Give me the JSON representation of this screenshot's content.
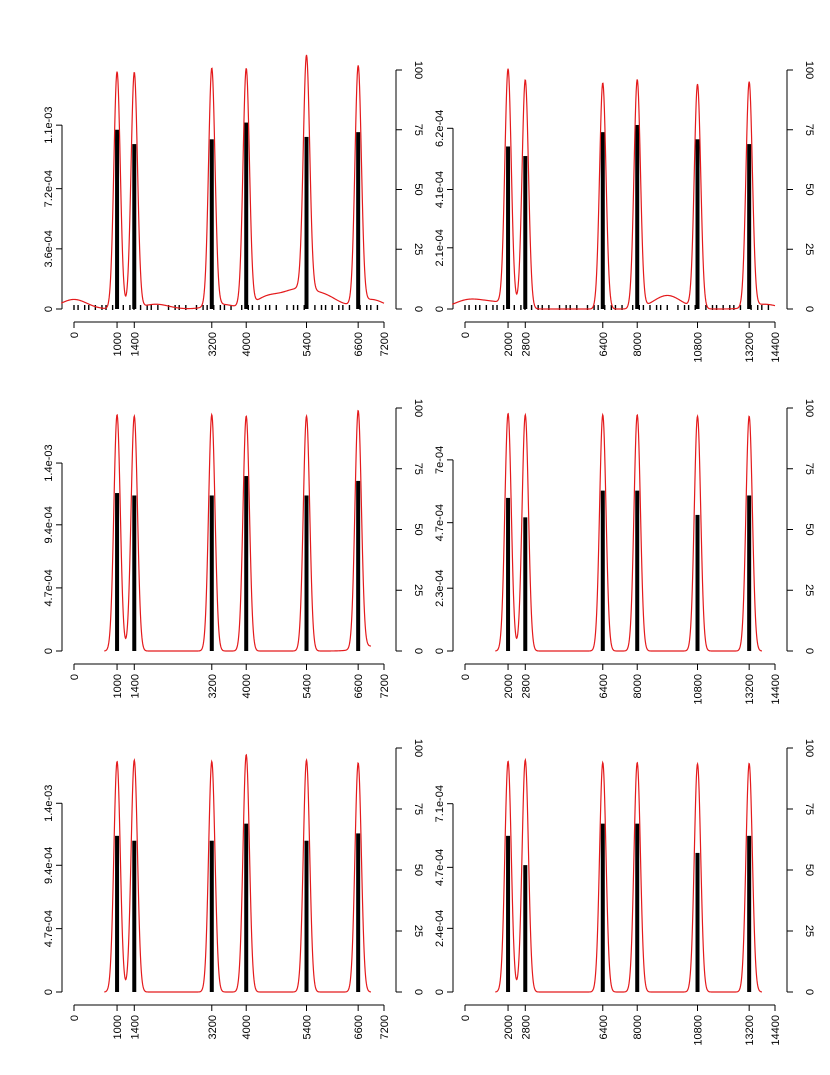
{
  "chart_data": [
    {
      "type": "line",
      "x_ticks": [
        "0",
        "1000",
        "1400",
        "3200",
        "4000",
        "5400",
        "6600",
        "7200"
      ],
      "xlim": [
        0,
        7200
      ],
      "left_ticks": [
        "0",
        "3.6e-04",
        "7.2e-04",
        "1.1e-03"
      ],
      "left_tick_values": [
        0,
        0.00036,
        0.00072,
        0.0011
      ],
      "left_lim": [
        0,
        0.00143
      ],
      "right_ticks": [
        "0",
        "25",
        "50",
        "75",
        "100"
      ],
      "right_lim": [
        0,
        100
      ],
      "peaks": [
        1000,
        1400,
        3200,
        4000,
        5400,
        6600
      ],
      "density_peak_heights": [
        0.00142,
        0.00141,
        0.00142,
        0.00142,
        0.0014,
        0.00142
      ],
      "bar_heights": [
        75,
        69,
        71,
        78,
        72,
        74
      ],
      "small_bumps": [
        [
          0,
          4
        ],
        [
          1900,
          2
        ],
        [
          3400,
          2
        ],
        [
          4500,
          5
        ],
        [
          5100,
          6
        ],
        [
          5500,
          4
        ],
        [
          5900,
          4
        ],
        [
          6900,
          4
        ]
      ],
      "rug": true
    },
    {
      "type": "line",
      "x_ticks": [
        "0",
        "2000",
        "2800",
        "6400",
        "8000",
        "10800",
        "13200",
        "14400"
      ],
      "xlim": [
        0,
        14400
      ],
      "left_ticks": [
        "0",
        "2.1e-04",
        "4.1e-04",
        "6.2e-04"
      ],
      "left_tick_values": [
        0,
        0.00021,
        0.00041,
        0.00062
      ],
      "left_lim": [
        0,
        0.00082
      ],
      "right_ticks": [
        "0",
        "25",
        "50",
        "75",
        "100"
      ],
      "right_lim": [
        0,
        100
      ],
      "peaks": [
        2000,
        2800,
        6400,
        8000,
        10800,
        13200
      ],
      "density_peak_heights": [
        0.000808,
        0.000784,
        0.000776,
        0.000784,
        0.000768,
        0.000772
      ],
      "bar_heights": [
        68,
        64,
        74,
        77,
        71,
        69
      ],
      "small_bumps": [
        [
          0,
          3
        ],
        [
          800,
          2
        ],
        [
          1700,
          2
        ],
        [
          9200,
          3
        ],
        [
          9600,
          3
        ],
        [
          13900,
          2
        ]
      ],
      "rug": true
    },
    {
      "type": "line",
      "x_ticks": [
        "0",
        "1000",
        "1400",
        "3200",
        "4000",
        "5400",
        "6600",
        "7200"
      ],
      "xlim": [
        0,
        7200
      ],
      "left_ticks": [
        "0",
        "4.7e-04",
        "9.4e-04",
        "1.4e-03"
      ],
      "left_tick_values": [
        0,
        0.00047,
        0.00094,
        0.0014
      ],
      "left_lim": [
        0,
        0.00181
      ],
      "right_ticks": [
        "0",
        "25",
        "50",
        "75",
        "100"
      ],
      "right_lim": [
        0,
        100
      ],
      "peaks": [
        1000,
        1400,
        3200,
        4000,
        5400,
        6600
      ],
      "density_peak_heights": [
        0.00176,
        0.00175,
        0.00176,
        0.00175,
        0.00175,
        0.00177
      ],
      "bar_heights": [
        65,
        64,
        64,
        72,
        64,
        70
      ],
      "small_bumps": [
        [
          6900,
          2
        ]
      ],
      "rug": false
    },
    {
      "type": "line",
      "x_ticks": [
        "0",
        "2000",
        "2800",
        "6400",
        "8000",
        "10800",
        "13200",
        "14400"
      ],
      "xlim": [
        0,
        14400
      ],
      "left_ticks": [
        "0",
        "2.3e-04",
        "4.7e-04",
        "7e-04"
      ],
      "left_tick_values": [
        0,
        0.00023,
        0.00047,
        0.0007
      ],
      "left_lim": [
        0,
        0.00089
      ],
      "right_ticks": [
        "0",
        "25",
        "50",
        "75",
        "100"
      ],
      "right_lim": [
        0,
        100
      ],
      "peaks": [
        2000,
        2800,
        6400,
        8000,
        10800,
        13200
      ],
      "density_peak_heights": [
        0.00087,
        0.000865,
        0.000865,
        0.000865,
        0.00086,
        0.00086
      ],
      "bar_heights": [
        63,
        55,
        66,
        66,
        56,
        64
      ],
      "small_bumps": [],
      "rug": false
    },
    {
      "type": "line",
      "x_ticks": [
        "0",
        "1000",
        "1400",
        "3200",
        "4000",
        "5400",
        "6600",
        "7200"
      ],
      "xlim": [
        0,
        7200
      ],
      "left_ticks": [
        "0",
        "4.7e-04",
        "9.4e-04",
        "1.4e-03"
      ],
      "left_tick_values": [
        0,
        0.00047,
        0.00094,
        0.0014
      ],
      "left_lim": [
        0,
        0.00181
      ],
      "right_ticks": [
        "0",
        "25",
        "50",
        "75",
        "100"
      ],
      "right_lim": [
        0,
        100
      ],
      "peaks": [
        1000,
        1400,
        3200,
        4000,
        5400,
        6600
      ],
      "density_peak_heights": [
        0.00171,
        0.00172,
        0.00171,
        0.00176,
        0.00172,
        0.0017
      ],
      "bar_heights": [
        64,
        62,
        62,
        69,
        62,
        65
      ],
      "small_bumps": [],
      "rug": false
    },
    {
      "type": "line",
      "x_ticks": [
        "0",
        "2000",
        "2800",
        "6400",
        "8000",
        "10800",
        "13200",
        "14400"
      ],
      "xlim": [
        0,
        14400
      ],
      "left_ticks": [
        "0",
        "2.4e-04",
        "4.7e-04",
        "7.1e-04"
      ],
      "left_tick_values": [
        0,
        0.00024,
        0.00047,
        0.00071
      ],
      "left_lim": [
        0,
        0.00092
      ],
      "right_ticks": [
        "0",
        "25",
        "50",
        "75",
        "100"
      ],
      "right_lim": [
        0,
        100
      ],
      "peaks": [
        2000,
        2800,
        6400,
        8000,
        10800,
        13200
      ],
      "density_peak_heights": [
        0.00087,
        0.000875,
        0.000865,
        0.000865,
        0.00086,
        0.000862
      ],
      "bar_heights": [
        64,
        52,
        69,
        69,
        57,
        64
      ],
      "small_bumps": [],
      "rug": false
    }
  ],
  "colors": {
    "density_line": "#e41a1c",
    "bars": "#000000",
    "axes": "#000000"
  }
}
